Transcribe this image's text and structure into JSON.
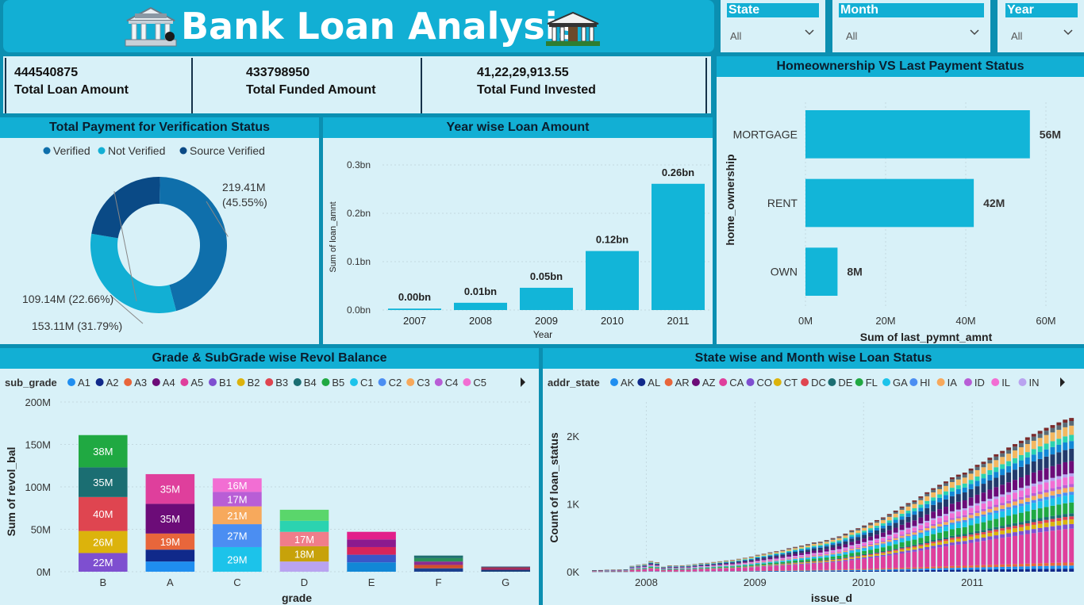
{
  "title": "Bank Loan Analysis",
  "filters": [
    {
      "label": "State",
      "value": "All"
    },
    {
      "label": "Month",
      "value": "All"
    },
    {
      "label": "Year",
      "value": "All"
    }
  ],
  "kpis": [
    {
      "value": "444540875",
      "label": "Total Loan Amount"
    },
    {
      "value": "433798950",
      "label": "Total Funded Amount"
    },
    {
      "value": "41,22,29,913.55",
      "label": "Total Fund Invested"
    }
  ],
  "colors": {
    "accent": "#12afd4",
    "panel": "#d8f1f8",
    "bar": "#12b5d8"
  },
  "chart_data": [
    {
      "id": "donut",
      "type": "pie",
      "title": "Total Payment for Verification Status",
      "legend": [
        "Verified",
        "Not Verified",
        "Source Verified"
      ],
      "values": [
        219.41,
        153.11,
        109.14
      ],
      "labels": [
        "219.41M (45.55%)",
        "153.11M (31.79%)",
        "109.14M (22.66%)"
      ],
      "label_lines": [
        [
          "219.41M",
          "(45.55%)"
        ],
        [
          "153.11M (31.79%)"
        ],
        [
          "109.14M (22.66%)"
        ]
      ],
      "colors": [
        "#0f6fab",
        "#12afd4",
        "#0a4a86"
      ]
    },
    {
      "id": "yearbar",
      "type": "bar",
      "title": "Year wise Loan Amount",
      "categories": [
        "2007",
        "2008",
        "2009",
        "2010",
        "2011"
      ],
      "values": [
        0.003,
        0.015,
        0.046,
        0.122,
        0.261
      ],
      "data_labels": [
        "0.00bn",
        "0.01bn",
        "0.05bn",
        "0.12bn",
        "0.26bn"
      ],
      "yticks": [
        "0.0bn",
        "0.1bn",
        "0.2bn",
        "0.3bn"
      ],
      "ylim": [
        0,
        0.3
      ],
      "xlabel": "Year",
      "ylabel": "Sum of loan_amnt"
    },
    {
      "id": "homebar",
      "type": "bar",
      "title": "Homeownership VS Last Payment Status",
      "orientation": "horizontal",
      "categories": [
        "MORTGAGE",
        "RENT",
        "OWN"
      ],
      "values": [
        56,
        42,
        8
      ],
      "data_labels": [
        "56M",
        "42M",
        "8M"
      ],
      "xticks": [
        "0M",
        "20M",
        "40M",
        "60M"
      ],
      "xlim": [
        0,
        60
      ],
      "xlabel": "Sum of last_pymnt_amnt",
      "ylabel": "home_ownership"
    },
    {
      "id": "gradebar",
      "type": "bar",
      "stacked": true,
      "title": "Grade & SubGrade wise Revol Balance",
      "legend_title": "sub_grade",
      "legend": [
        {
          "name": "A1",
          "color": "#1f8ef0"
        },
        {
          "name": "A2",
          "color": "#10298a"
        },
        {
          "name": "A3",
          "color": "#e8663b"
        },
        {
          "name": "A4",
          "color": "#6c0c78"
        },
        {
          "name": "A5",
          "color": "#df3f9c"
        },
        {
          "name": "B1",
          "color": "#7e4fd0"
        },
        {
          "name": "B2",
          "color": "#dcb30c"
        },
        {
          "name": "B3",
          "color": "#df4550"
        },
        {
          "name": "B4",
          "color": "#1b6e72"
        },
        {
          "name": "B5",
          "color": "#20a942"
        },
        {
          "name": "C1",
          "color": "#1cc3ea"
        },
        {
          "name": "C2",
          "color": "#4b8ef2"
        },
        {
          "name": "C3",
          "color": "#f7a95c"
        },
        {
          "name": "C4",
          "color": "#b85ed6"
        },
        {
          "name": "C5",
          "color": "#f26ed3"
        }
      ],
      "categories": [
        "B",
        "A",
        "C",
        "D",
        "E",
        "F",
        "G"
      ],
      "stacks": [
        [
          {
            "v": 22,
            "c": "#7e4fd0",
            "l": "22M"
          },
          {
            "v": 26,
            "c": "#dcb30c",
            "l": "26M"
          },
          {
            "v": 40,
            "c": "#df4550",
            "l": "40M"
          },
          {
            "v": 35,
            "c": "#1b6e72",
            "l": "35M"
          },
          {
            "v": 38,
            "c": "#20a942",
            "l": "38M"
          }
        ],
        [
          {
            "v": 12,
            "c": "#1f8ef0",
            "l": ""
          },
          {
            "v": 14,
            "c": "#10298a",
            "l": ""
          },
          {
            "v": 19,
            "c": "#e8663b",
            "l": "19M"
          },
          {
            "v": 35,
            "c": "#6c0c78",
            "l": "35M"
          },
          {
            "v": 35,
            "c": "#df3f9c",
            "l": "35M"
          }
        ],
        [
          {
            "v": 29,
            "c": "#1cc3ea",
            "l": "29M"
          },
          {
            "v": 27,
            "c": "#4b8ef2",
            "l": "27M"
          },
          {
            "v": 21,
            "c": "#f7a95c",
            "l": "21M"
          },
          {
            "v": 17,
            "c": "#b85ed6",
            "l": "17M"
          },
          {
            "v": 16,
            "c": "#f26ed3",
            "l": "16M"
          }
        ],
        [
          {
            "v": 12,
            "c": "#b9a3f0",
            "l": ""
          },
          {
            "v": 18,
            "c": "#c7a20a",
            "l": "18M"
          },
          {
            "v": 17,
            "c": "#f07d8a",
            "l": "17M"
          },
          {
            "v": 13,
            "c": "#2bd3b0",
            "l": ""
          },
          {
            "v": 13,
            "c": "#5ad66b",
            "l": ""
          }
        ],
        [
          {
            "v": 11,
            "c": "#1187d6",
            "l": ""
          },
          {
            "v": 9,
            "c": "#3a56c8",
            "l": ""
          },
          {
            "v": 9,
            "c": "#d8245a",
            "l": ""
          },
          {
            "v": 9,
            "c": "#8b1a8e",
            "l": ""
          },
          {
            "v": 9,
            "c": "#e21f8a",
            "l": ""
          }
        ],
        [
          {
            "v": 4,
            "c": "#1a3f8f",
            "l": ""
          },
          {
            "v": 4,
            "c": "#d14f2c",
            "l": ""
          },
          {
            "v": 4,
            "c": "#8b2c90",
            "l": ""
          },
          {
            "v": 4,
            "c": "#2a8f5a",
            "l": ""
          },
          {
            "v": 3,
            "c": "#1f6e70",
            "l": ""
          }
        ],
        [
          {
            "v": 2,
            "c": "#133d7a",
            "l": ""
          },
          {
            "v": 2,
            "c": "#8b1f62",
            "l": ""
          },
          {
            "v": 1,
            "c": "#c8202c",
            "l": ""
          },
          {
            "v": 1,
            "c": "#233a6b",
            "l": ""
          }
        ]
      ],
      "yticks": [
        "0M",
        "50M",
        "100M",
        "150M",
        "200M"
      ],
      "ylim": [
        0,
        200
      ],
      "xlabel": "grade",
      "ylabel": "Sum of revol_bal"
    },
    {
      "id": "statebar",
      "type": "bar",
      "stacked": true,
      "title": "State wise and Month wise Loan Status",
      "legend_title": "addr_state",
      "legend": [
        {
          "name": "AK",
          "color": "#1f8ef0"
        },
        {
          "name": "AL",
          "color": "#10298a"
        },
        {
          "name": "AR",
          "color": "#e8663b"
        },
        {
          "name": "AZ",
          "color": "#6c0c78"
        },
        {
          "name": "CA",
          "color": "#df3f9c"
        },
        {
          "name": "CO",
          "color": "#7e4fd0"
        },
        {
          "name": "CT",
          "color": "#dcb30c"
        },
        {
          "name": "DC",
          "color": "#df4550"
        },
        {
          "name": "DE",
          "color": "#1b6e72"
        },
        {
          "name": "FL",
          "color": "#20a942"
        },
        {
          "name": "GA",
          "color": "#1cc3ea"
        },
        {
          "name": "HI",
          "color": "#4b8ef2"
        },
        {
          "name": "IA",
          "color": "#f7a95c"
        },
        {
          "name": "ID",
          "color": "#b85ed6"
        },
        {
          "name": "IL",
          "color": "#f26ed3"
        },
        {
          "name": "IN",
          "color": "#b9a3f0"
        }
      ],
      "x_start": 2007.5,
      "x_end": 2011.95,
      "totals": [
        22,
        24,
        27,
        30,
        31,
        35,
        84,
        100,
        112,
        155,
        140,
        72,
        92,
        90,
        94,
        98,
        112,
        125,
        130,
        142,
        153,
        165,
        172,
        189,
        205,
        222,
        248,
        265,
        285,
        302,
        318,
        345,
        365,
        385,
        405,
        430,
        440,
        465,
        495,
        520,
        560,
        610,
        640,
        680,
        720,
        760,
        800,
        850,
        900,
        960,
        1010,
        1050,
        1110,
        1170,
        1230,
        1280,
        1330,
        1390,
        1430,
        1460,
        1520,
        1575,
        1620,
        1680,
        1730,
        1780,
        1830,
        1880,
        1930,
        1980,
        2030,
        2075,
        2120,
        2160,
        2200,
        2240,
        2265
      ],
      "xticks": [
        "2008",
        "2009",
        "2010",
        "2011"
      ],
      "yticks": [
        "0K",
        "1K",
        "2K"
      ],
      "ylim": [
        0,
        2500
      ],
      "xlabel": "issue_d",
      "ylabel": "Count of loan_status"
    }
  ]
}
